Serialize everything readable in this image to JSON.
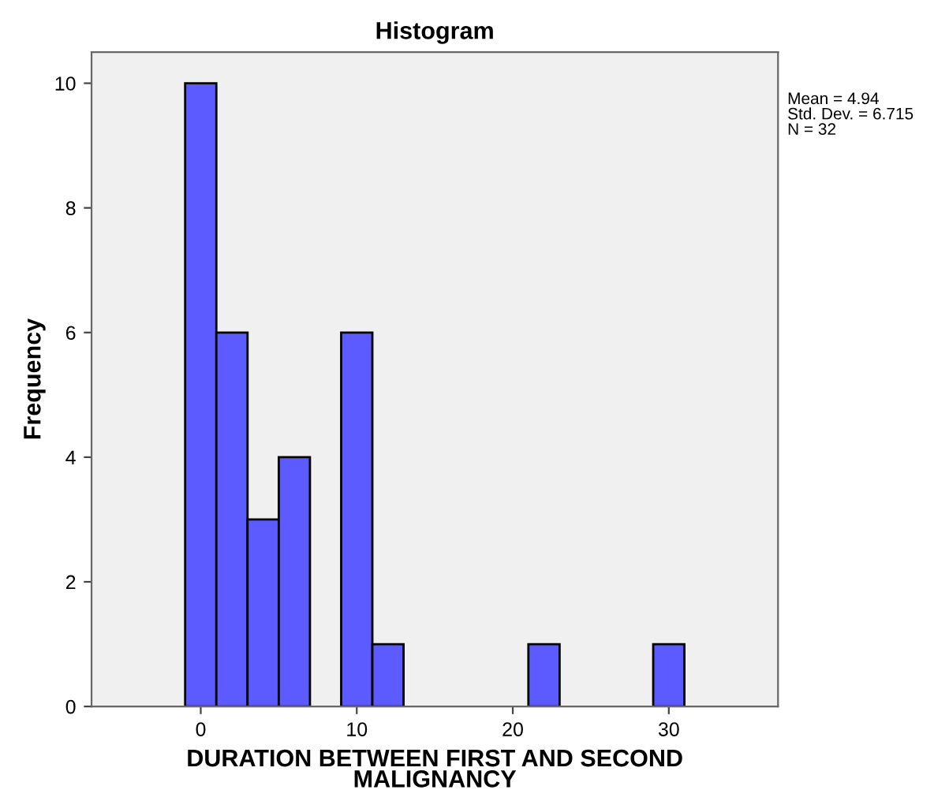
{
  "chart_data": {
    "type": "histogram",
    "title": "Histogram",
    "xlabel": "DURATION BETWEEN FIRST AND SECOND\nMALIGNANCY",
    "ylabel": "Frequency",
    "bins": [
      -1,
      1,
      3,
      5,
      7,
      9,
      11,
      13,
      15,
      17,
      19,
      21,
      23,
      25,
      27,
      29,
      31
    ],
    "values": [
      10,
      6,
      3,
      4,
      0,
      6,
      1,
      0,
      0,
      0,
      0,
      1,
      0,
      0,
      0,
      1
    ],
    "color": "#5b5bff",
    "xlim": [
      -7,
      37
    ],
    "xticks": [
      0,
      10,
      20,
      30
    ],
    "ylim": [
      0,
      10.5
    ],
    "yticks": [
      0,
      2,
      4,
      6,
      8,
      10
    ],
    "grid": false,
    "annotations": [
      "Mean = 4.94\nStd. Dev. = 6.715\nN = 32"
    ]
  }
}
